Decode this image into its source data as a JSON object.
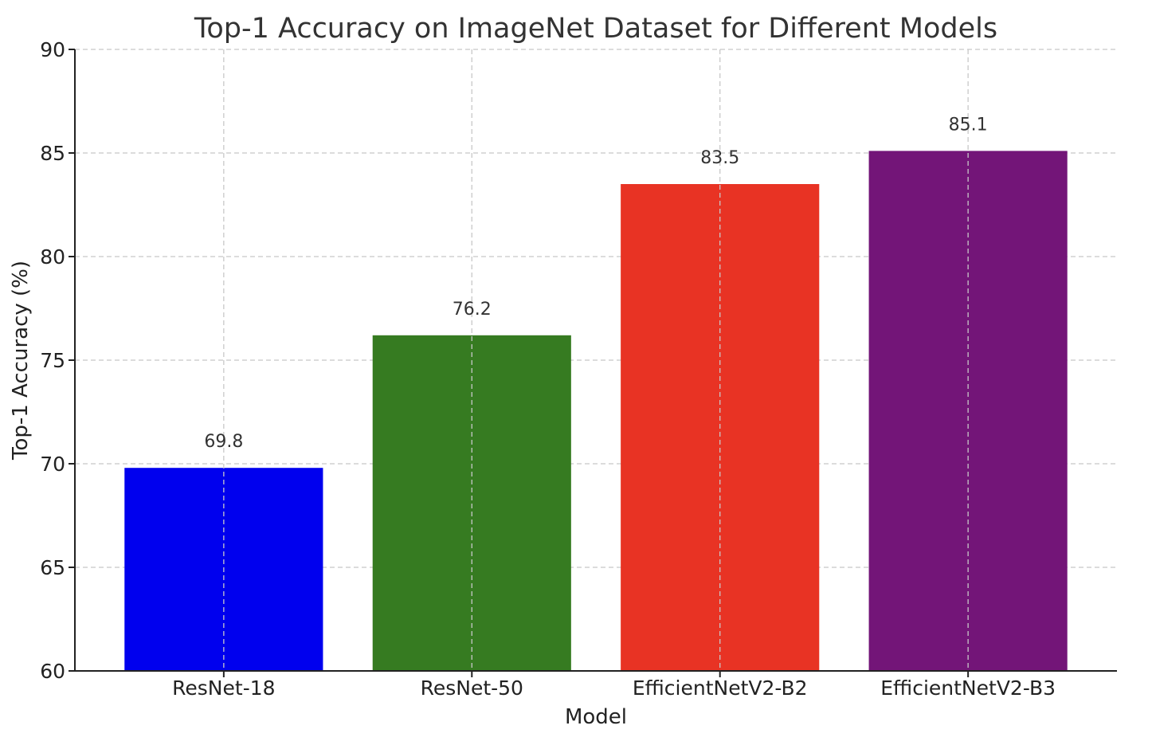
{
  "chart_data": {
    "type": "bar",
    "title": "Top-1 Accuracy on ImageNet Dataset for Different Models",
    "xlabel": "Model",
    "ylabel": "Top-1 Accuracy (%)",
    "categories": [
      "ResNet-18",
      "ResNet-50",
      "EfficientNetV2-B2",
      "EfficientNetV2-B3"
    ],
    "values": [
      69.8,
      76.2,
      83.5,
      85.1
    ],
    "value_labels": [
      "69.8",
      "76.2",
      "83.5",
      "85.1"
    ],
    "colors": [
      "#0000ee",
      "#367b21",
      "#e83324",
      "#731578"
    ],
    "ylim": [
      60,
      90
    ],
    "yticks": [
      60,
      65,
      70,
      75,
      80,
      85,
      90
    ],
    "ytick_labels": [
      "60",
      "65",
      "70",
      "75",
      "80",
      "85",
      "90"
    ],
    "grid": true,
    "grid_style": "dashed",
    "legend": "none"
  }
}
